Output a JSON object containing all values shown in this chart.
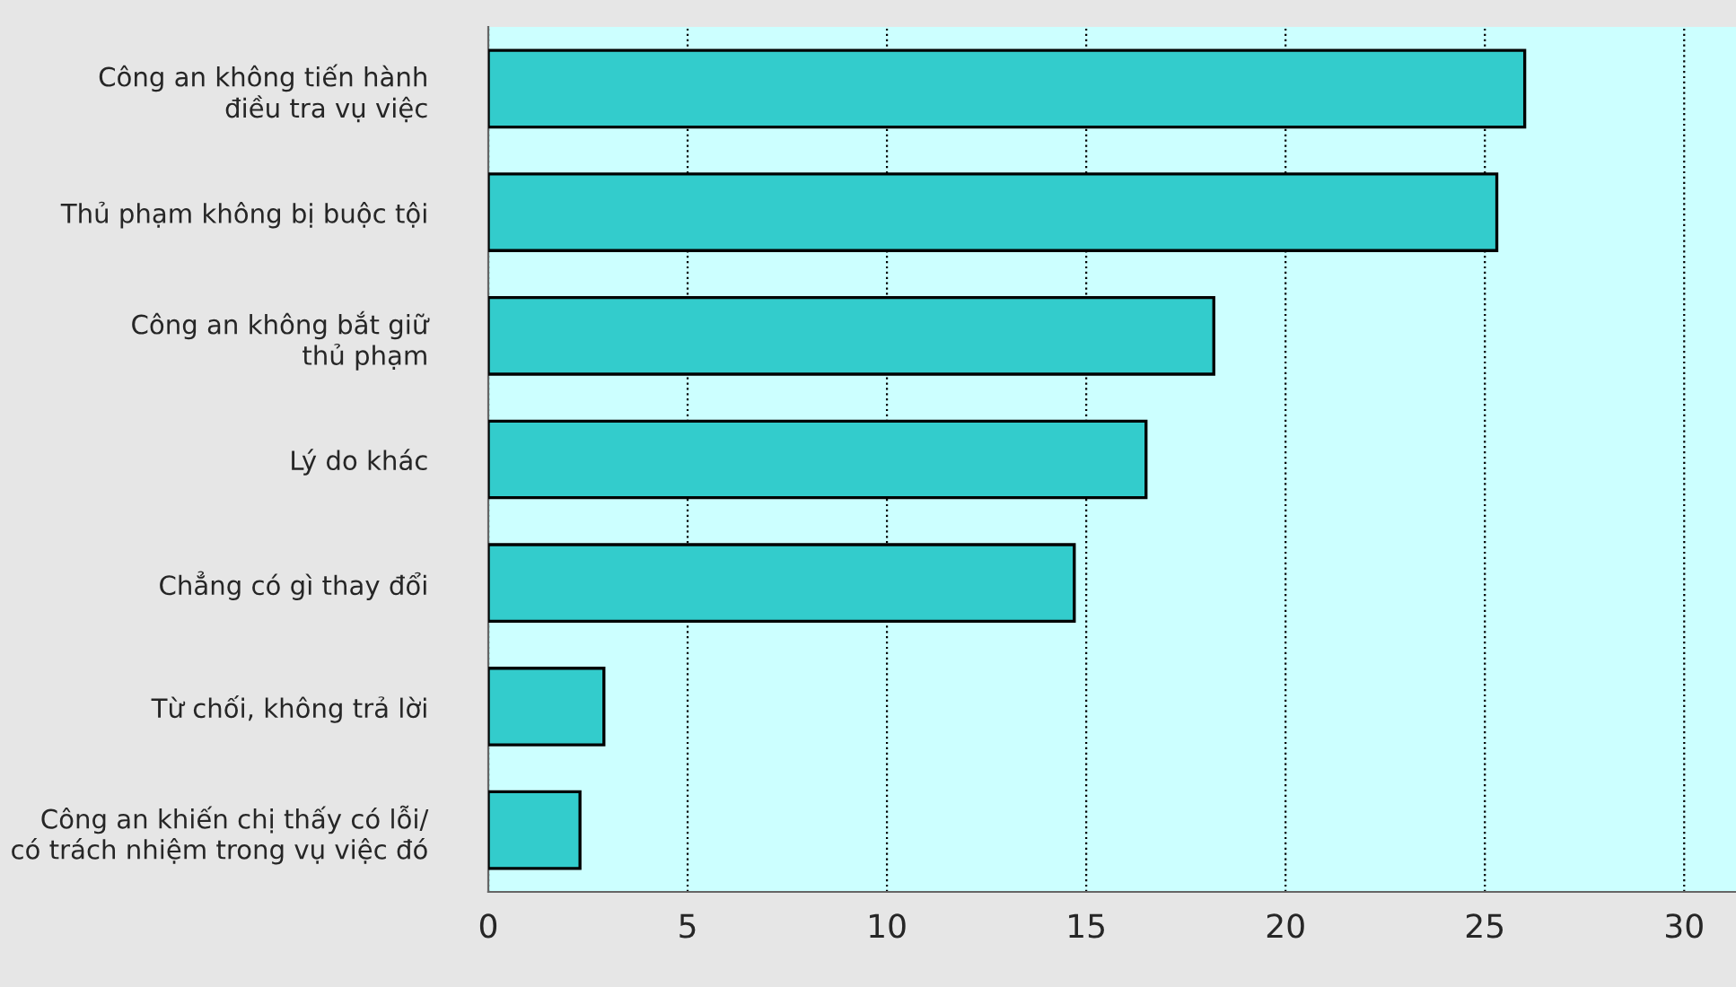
{
  "chart_data": {
    "type": "bar",
    "orientation": "horizontal",
    "categories": [
      "Công an không tiến hành\nđiều tra vụ việc",
      "Thủ phạm không bị buộc tội",
      "Công an không bắt giữ\nthủ phạm",
      "Lý do khác",
      "Chẳng có gì thay đổi",
      "Từ chối, không trả lời",
      "Công an khiến chị thấy có lỗi/\ncó trách nhiệm trong vụ việc đó"
    ],
    "values": [
      26.0,
      25.3,
      18.2,
      16.5,
      14.7,
      2.9,
      2.3
    ],
    "color": "#33cccc",
    "xlim": [
      0,
      31.3
    ],
    "xticks": [
      0,
      5,
      10,
      15,
      20,
      25,
      30
    ],
    "grid": "x",
    "line_style": "dotted"
  }
}
